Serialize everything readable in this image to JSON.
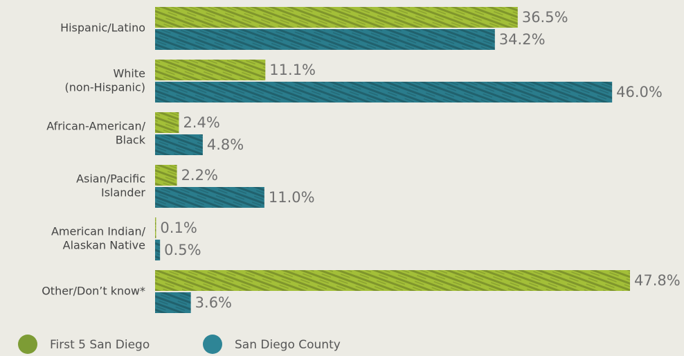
{
  "chart_data": {
    "type": "hbar",
    "categories": [
      [
        "Hispanic/Latino"
      ],
      [
        "White",
        "(non-Hispanic)"
      ],
      [
        "African-American/",
        "Black"
      ],
      [
        "Asian/Pacific",
        "Islander"
      ],
      [
        "American Indian/",
        "Alaskan Native"
      ],
      [
        "Other/Don’t know*"
      ]
    ],
    "series": [
      {
        "name": "First 5 San Diego",
        "color": "#a3bf38",
        "legend_color": "#7d9c35",
        "values": [
          36.5,
          11.1,
          2.4,
          2.2,
          0.1,
          47.8
        ],
        "value_labels": [
          "36.5%",
          "11.1%",
          "2.4%",
          "2.2%",
          "0.1%",
          "47.8%"
        ]
      },
      {
        "name": "San Diego County",
        "color": "#2a7c8c",
        "legend_color": "#2e8596",
        "values": [
          34.2,
          46.0,
          4.8,
          11.0,
          0.5,
          3.6
        ],
        "value_labels": [
          "34.2%",
          "46.0%",
          "4.8%",
          "11.0%",
          "0.5%",
          "3.6%"
        ]
      }
    ]
  }
}
